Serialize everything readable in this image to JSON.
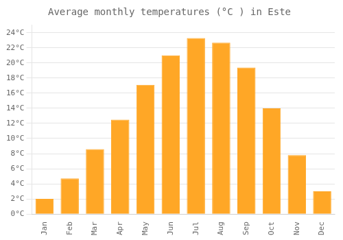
{
  "chart_data": {
    "type": "bar",
    "title": "Average monthly temperatures (°C ) in Este",
    "categories": [
      "Jan",
      "Feb",
      "Mar",
      "Apr",
      "May",
      "Jun",
      "Jul",
      "Aug",
      "Sep",
      "Oct",
      "Nov",
      "Dec"
    ],
    "values": [
      2.0,
      4.7,
      8.6,
      12.5,
      17.1,
      21.0,
      23.3,
      22.7,
      19.4,
      14.0,
      7.8,
      3.0
    ],
    "color": "#FFA726",
    "ylim": [
      0,
      25
    ],
    "yticks": [
      {
        "value": 0,
        "label": "0°C"
      },
      {
        "value": 2,
        "label": "2°C"
      },
      {
        "value": 4,
        "label": "4°C"
      },
      {
        "value": 6,
        "label": "6°C"
      },
      {
        "value": 8,
        "label": "8°C"
      },
      {
        "value": 10,
        "label": "10°C"
      },
      {
        "value": 12,
        "label": "12°C"
      },
      {
        "value": 14,
        "label": "14°C"
      },
      {
        "value": 16,
        "label": "16°C"
      },
      {
        "value": 18,
        "label": "18°C"
      },
      {
        "value": 20,
        "label": "20°C"
      },
      {
        "value": 22,
        "label": "22°C"
      },
      {
        "value": 24,
        "label": "24°C"
      }
    ],
    "grid": true
  }
}
